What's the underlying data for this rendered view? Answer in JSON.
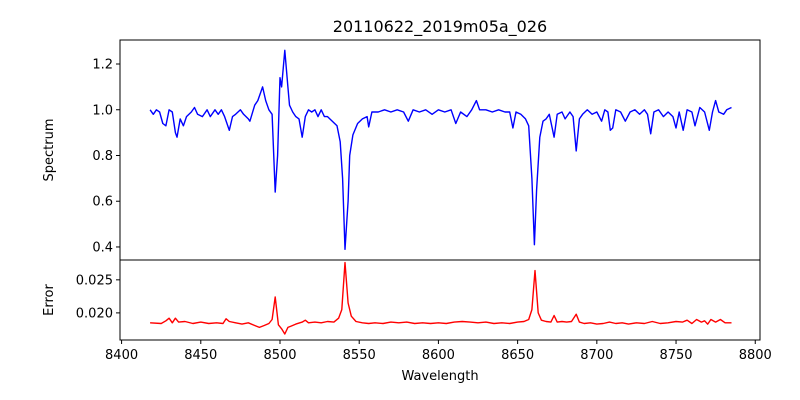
{
  "chart_data": [
    {
      "type": "line",
      "title": "20110622_2019m05a_026",
      "xlabel": "",
      "ylabel": "Spectrum",
      "xlim": [
        8399,
        8803
      ],
      "ylim": [
        0.343,
        1.305
      ],
      "yticks": [
        0.4,
        0.6,
        0.8,
        1.0,
        1.2
      ],
      "ytick_labels": [
        "0.4",
        "0.6",
        "0.8",
        "1.0",
        "1.2"
      ],
      "grid": false,
      "color": "#0000ff",
      "series": [
        {
          "name": "Spectrum",
          "x": [
            8418,
            8420,
            8422,
            8424,
            8426,
            8428,
            8430,
            8432,
            8434,
            8435,
            8437,
            8439,
            8441,
            8444,
            8446,
            8448,
            8451,
            8454,
            8456,
            8459,
            8461,
            8463,
            8465,
            8468,
            8470,
            8472,
            8475,
            8477,
            8480,
            8481,
            8484,
            8486,
            8488,
            8489,
            8491,
            8493,
            8495,
            8497,
            8498.5,
            8500,
            8501,
            8503,
            8505,
            8506,
            8508,
            8510,
            8512,
            8514,
            8516,
            8518,
            8520,
            8522,
            8524,
            8526,
            8528,
            8530,
            8533,
            8536,
            8538,
            8539.5,
            8541,
            8543,
            8544,
            8546,
            8549,
            8552,
            8555,
            8556,
            8558,
            8562,
            8566,
            8570,
            8574,
            8578,
            8581,
            8584,
            8588,
            8592,
            8596,
            8600,
            8604,
            8608,
            8611,
            8614,
            8618,
            8621,
            8624,
            8626,
            8630,
            8634,
            8638,
            8642,
            8645,
            8647,
            8649,
            8652,
            8655,
            8657,
            8659,
            8660.6,
            8662,
            8664,
            8666,
            8668,
            8670,
            8673,
            8675,
            8678,
            8680,
            8683,
            8685,
            8687,
            8689,
            8691,
            8694,
            8697,
            8700,
            8703,
            8705,
            8707,
            8708.5,
            8710,
            8712,
            8715,
            8718,
            8721,
            8724,
            8727,
            8730,
            8732,
            8734,
            8736,
            8739,
            8742,
            8745,
            8748,
            8750,
            8752,
            8754.5,
            8757,
            8760,
            8762,
            8765,
            8768,
            8771,
            8773,
            8775,
            8777,
            8780,
            8782,
            8785
          ],
          "y": [
            1.0,
            0.98,
            1.0,
            0.99,
            0.94,
            0.93,
            1.0,
            0.99,
            0.9,
            0.88,
            0.96,
            0.93,
            0.97,
            0.99,
            1.01,
            0.98,
            0.97,
            1.0,
            0.97,
            1.0,
            0.98,
            1.0,
            0.97,
            0.91,
            0.97,
            0.98,
            1.0,
            0.98,
            0.96,
            0.95,
            1.02,
            1.04,
            1.08,
            1.1,
            1.04,
            1.0,
            0.98,
            0.64,
            0.8,
            1.14,
            1.1,
            1.26,
            1.1,
            1.02,
            0.99,
            0.97,
            0.96,
            0.88,
            0.97,
            1.0,
            0.99,
            1.0,
            0.97,
            1.0,
            0.97,
            0.97,
            0.95,
            0.93,
            0.86,
            0.7,
            0.39,
            0.6,
            0.8,
            0.89,
            0.94,
            0.96,
            0.97,
            0.925,
            0.99,
            0.99,
            1.0,
            0.99,
            1.0,
            0.99,
            0.95,
            1.0,
            0.99,
            1.0,
            0.98,
            1.0,
            0.99,
            1.0,
            0.94,
            0.99,
            0.97,
            1.0,
            1.04,
            1.0,
            1.0,
            0.99,
            1.0,
            0.99,
            0.99,
            0.92,
            0.99,
            0.98,
            0.96,
            0.93,
            0.7,
            0.41,
            0.65,
            0.88,
            0.95,
            0.96,
            0.98,
            0.88,
            0.98,
            0.99,
            0.96,
            0.99,
            0.97,
            0.82,
            0.96,
            0.98,
            1.0,
            0.98,
            0.99,
            0.95,
            1.0,
            0.99,
            0.91,
            0.92,
            1.0,
            0.99,
            0.95,
            0.99,
            1.0,
            0.98,
            1.0,
            0.98,
            0.895,
            0.99,
            1.0,
            0.97,
            0.99,
            0.97,
            0.92,
            0.99,
            0.91,
            1.0,
            0.99,
            0.93,
            1.01,
            0.99,
            0.91,
            0.99,
            1.04,
            0.99,
            0.98,
            1.0,
            1.01
          ]
        }
      ]
    },
    {
      "type": "line",
      "title": "",
      "xlabel": "Wavelength",
      "ylabel": "Error",
      "xlim": [
        8399,
        8803
      ],
      "ylim": [
        0.0159,
        0.028
      ],
      "xticks": [
        8400,
        8450,
        8500,
        8550,
        8600,
        8650,
        8700,
        8750,
        8800
      ],
      "xtick_labels": [
        "8400",
        "8450",
        "8500",
        "8550",
        "8600",
        "8650",
        "8700",
        "8750",
        "8800"
      ],
      "yticks": [
        0.02,
        0.025
      ],
      "ytick_labels": [
        "0.020",
        "0.025"
      ],
      "grid": false,
      "color": "#ff0000",
      "series": [
        {
          "name": "Error",
          "x": [
            8418,
            8425,
            8428,
            8430,
            8432,
            8434,
            8436,
            8440,
            8445,
            8450,
            8455,
            8460,
            8464,
            8466,
            8468,
            8472,
            8476,
            8480,
            8484,
            8487,
            8490,
            8493,
            8495,
            8497,
            8499,
            8501,
            8503,
            8505,
            8507,
            8510,
            8514,
            8516,
            8518,
            8522,
            8526,
            8530,
            8534,
            8537,
            8539,
            8541,
            8543,
            8545,
            8548,
            8552,
            8556,
            8560,
            8565,
            8570,
            8575,
            8580,
            8585,
            8590,
            8595,
            8600,
            8605,
            8610,
            8615,
            8620,
            8625,
            8630,
            8635,
            8640,
            8645,
            8650,
            8654,
            8657,
            8659,
            8661,
            8663,
            8665,
            8668,
            8671,
            8673,
            8675,
            8678,
            8681,
            8684,
            8687,
            8689,
            8692,
            8696,
            8700,
            8704,
            8708,
            8712,
            8716,
            8720,
            8725,
            8730,
            8735,
            8740,
            8745,
            8750,
            8754,
            8757,
            8760,
            8763,
            8766,
            8768,
            8770,
            8772,
            8775,
            8778,
            8781,
            8785
          ],
          "y": [
            0.0185,
            0.0184,
            0.0188,
            0.0192,
            0.0185,
            0.0192,
            0.0186,
            0.0187,
            0.0184,
            0.0186,
            0.0184,
            0.0185,
            0.0184,
            0.0191,
            0.0187,
            0.0185,
            0.0183,
            0.0185,
            0.0181,
            0.0178,
            0.0181,
            0.0184,
            0.019,
            0.0224,
            0.0182,
            0.0176,
            0.0168,
            0.0178,
            0.018,
            0.0183,
            0.0186,
            0.0189,
            0.0185,
            0.0186,
            0.0185,
            0.0187,
            0.0186,
            0.0192,
            0.0205,
            0.0276,
            0.0215,
            0.0195,
            0.0187,
            0.0185,
            0.0184,
            0.0185,
            0.0184,
            0.0186,
            0.0185,
            0.0186,
            0.0184,
            0.0185,
            0.0184,
            0.0185,
            0.0184,
            0.0186,
            0.0187,
            0.0186,
            0.0185,
            0.0186,
            0.0184,
            0.0185,
            0.0184,
            0.0186,
            0.0187,
            0.019,
            0.0205,
            0.0264,
            0.02,
            0.0189,
            0.0187,
            0.0186,
            0.0196,
            0.0186,
            0.0187,
            0.0186,
            0.0187,
            0.0198,
            0.0186,
            0.0184,
            0.0185,
            0.0183,
            0.0184,
            0.0186,
            0.0184,
            0.0185,
            0.0183,
            0.0185,
            0.0184,
            0.0187,
            0.0184,
            0.0185,
            0.0187,
            0.0186,
            0.0189,
            0.0184,
            0.019,
            0.0186,
            0.0188,
            0.0183,
            0.019,
            0.0186,
            0.019,
            0.0185,
            0.0185
          ]
        }
      ]
    }
  ]
}
